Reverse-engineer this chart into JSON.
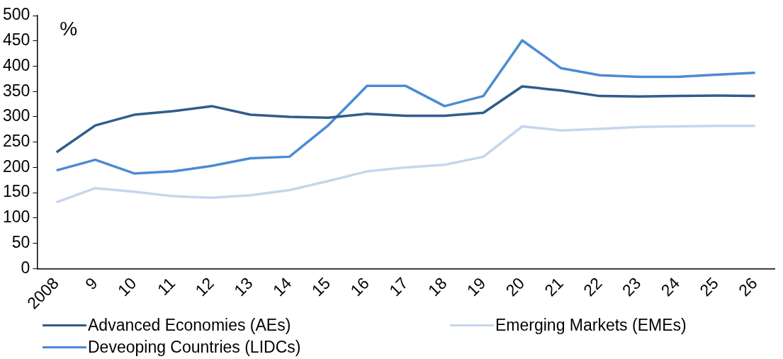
{
  "chart_data": {
    "type": "line",
    "ylabel": "%",
    "categories": [
      "2008",
      "9",
      "10",
      "11",
      "12",
      "13",
      "14",
      "15",
      "16",
      "17",
      "18",
      "19",
      "20",
      "21",
      "22",
      "23",
      "24",
      "25",
      "26"
    ],
    "series": [
      {
        "name": "Advanced Economies (AEs)",
        "color": "#2f5d8c",
        "values": [
          230,
          283,
          304,
          311,
          321,
          304,
          300,
          298,
          306,
          302,
          302,
          308,
          360,
          352,
          341,
          340,
          341,
          342,
          341
        ]
      },
      {
        "name": "Emerging Markets (EMEs)",
        "color": "#c5d6ec",
        "values": [
          131,
          159,
          152,
          143,
          140,
          145,
          155,
          173,
          192,
          200,
          205,
          221,
          281,
          273,
          276,
          280,
          281,
          282,
          282
        ]
      },
      {
        "name": "Deveoping Countries (LIDCs)",
        "color": "#4b8bd3",
        "values": [
          194,
          215,
          188,
          192,
          203,
          218,
          221,
          283,
          361,
          361,
          321,
          341,
          451,
          396,
          382,
          379,
          379,
          383,
          387
        ]
      }
    ],
    "ylim": [
      0,
      500
    ],
    "yticks": [
      0,
      50,
      100,
      150,
      200,
      250,
      300,
      350,
      400,
      450,
      500
    ],
    "grid": false,
    "legend": "bottom",
    "marker": "none",
    "line_style": "solid"
  }
}
